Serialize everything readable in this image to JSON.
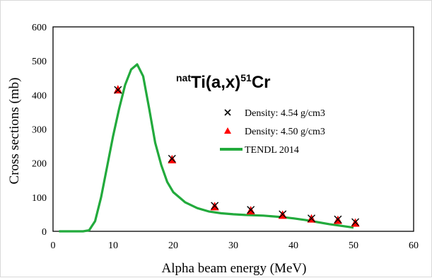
{
  "chart_data": {
    "type": "scatter",
    "title": "",
    "annotation": {
      "sup_left": "nat",
      "main": "Ti(a,x)",
      "sup_right": "51",
      "suffix": "Cr"
    },
    "xlabel": "Alpha beam energy (MeV)",
    "ylabel": "Cross sections (mb)",
    "xlim": [
      0,
      60
    ],
    "ylim": [
      0,
      600
    ],
    "xticks": [
      "0",
      "10",
      "20",
      "30",
      "40",
      "50",
      "60"
    ],
    "yticks": [
      "0",
      "100",
      "200",
      "300",
      "400",
      "500",
      "600"
    ],
    "grid": false,
    "legend_position": "right",
    "series": [
      {
        "name": "Density: 4.54 g/cm3",
        "kind": "scatter",
        "marker": "x",
        "color": "#000000",
        "points": [
          [
            10.8,
            415
          ],
          [
            19.8,
            213
          ],
          [
            26.9,
            75
          ],
          [
            32.9,
            63
          ],
          [
            38.2,
            50
          ],
          [
            43.0,
            38
          ],
          [
            47.4,
            35
          ],
          [
            50.3,
            27
          ]
        ]
      },
      {
        "name": "Density: 4.50 g/cm3",
        "kind": "scatter",
        "marker": "triangle",
        "color": "#ff0000",
        "points": [
          [
            10.8,
            415
          ],
          [
            19.8,
            210
          ],
          [
            26.9,
            72
          ],
          [
            32.9,
            60
          ],
          [
            38.2,
            47
          ],
          [
            43.0,
            36
          ],
          [
            47.4,
            32
          ],
          [
            50.3,
            24
          ]
        ]
      },
      {
        "name": "TENDL 2014",
        "kind": "line",
        "color": "#22aa3c",
        "points": [
          [
            1,
            0
          ],
          [
            3,
            0
          ],
          [
            5,
            0
          ],
          [
            6,
            3
          ],
          [
            7,
            30
          ],
          [
            8,
            100
          ],
          [
            9,
            190
          ],
          [
            10,
            280
          ],
          [
            11,
            360
          ],
          [
            12,
            430
          ],
          [
            13,
            475
          ],
          [
            14,
            490
          ],
          [
            15,
            455
          ],
          [
            16,
            360
          ],
          [
            17,
            260
          ],
          [
            18,
            195
          ],
          [
            19,
            145
          ],
          [
            20,
            115
          ],
          [
            22,
            85
          ],
          [
            24,
            68
          ],
          [
            26,
            58
          ],
          [
            28,
            53
          ],
          [
            30,
            50
          ],
          [
            32,
            48
          ],
          [
            35,
            46
          ],
          [
            38,
            42
          ],
          [
            40,
            38
          ],
          [
            42,
            33
          ],
          [
            44,
            27
          ],
          [
            46,
            21
          ],
          [
            48,
            16
          ],
          [
            50,
            11
          ]
        ]
      }
    ]
  }
}
